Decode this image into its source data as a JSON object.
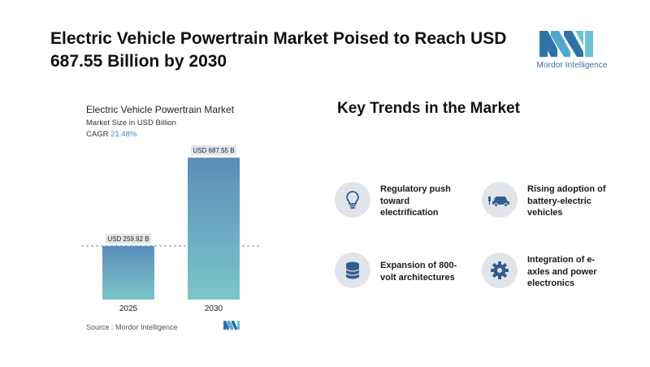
{
  "headline": "Electric Vehicle Powertrain Market Poised to Reach USD 687.55 Billion by 2030",
  "brand": {
    "name": "Mordor Intelligence",
    "color_dark": "#1f5f8f",
    "color_light": "#5fb8d0"
  },
  "chart_data": {
    "type": "bar",
    "title": "Electric Vehicle Powertrain Market",
    "subtitle": "Market Size in USD Billion",
    "cagr_label": "CAGR",
    "cagr_value": "21.48%",
    "categories": [
      "2025",
      "2030"
    ],
    "values": [
      259.92,
      687.55
    ],
    "value_labels": [
      "USD 259.92 B",
      "USD 687.55 B"
    ],
    "ylim": [
      0,
      700
    ],
    "grid": false,
    "reference_line": "dashed at first bar value",
    "bar_gradient": [
      "#5b8db9",
      "#7cc6c9"
    ]
  },
  "source": "Source :  Mordor Intelligence",
  "trends": {
    "title": "Key Trends in the Market",
    "items": [
      {
        "label": "Regulatory push toward electrification",
        "icon": "lightbulb-icon"
      },
      {
        "label": "Rising adoption of battery-electric vehicles",
        "icon": "ev-car-icon"
      },
      {
        "label": "Expansion of 800-volt architectures",
        "icon": "database-icon"
      },
      {
        "label": "Integration of e-axles and power electronics",
        "icon": "gear-icon"
      }
    ]
  }
}
